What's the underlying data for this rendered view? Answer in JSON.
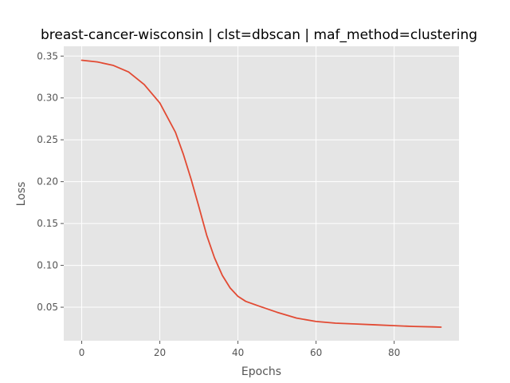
{
  "chart_data": {
    "type": "line",
    "title": "breast-cancer-wisconsin | clst=dbscan | maf_method=clustering",
    "xlabel": "Epochs",
    "ylabel": "Loss",
    "xlim": [
      -4.6,
      96.6
    ],
    "ylim": [
      0.01,
      0.3617
    ],
    "xticks": [
      0,
      20,
      40,
      60,
      80
    ],
    "yticks": [
      0.05,
      0.1,
      0.15,
      0.2,
      0.25,
      0.3,
      0.35
    ],
    "xtick_labels": [
      "0",
      "20",
      "40",
      "60",
      "80"
    ],
    "ytick_labels": [
      "0.05",
      "0.10",
      "0.15",
      "0.20",
      "0.25",
      "0.30",
      "0.35"
    ],
    "grid": true,
    "series": [
      {
        "color": "#E24A33",
        "x": [
          0,
          4,
          8,
          12,
          16,
          20,
          24,
          26,
          28,
          30,
          32,
          34,
          36,
          38,
          40,
          42,
          45,
          50,
          55,
          60,
          65,
          70,
          75,
          80,
          85,
          90,
          92
        ],
        "y": [
          0.345,
          0.343,
          0.339,
          0.331,
          0.316,
          0.294,
          0.259,
          0.233,
          0.203,
          0.17,
          0.136,
          0.109,
          0.088,
          0.073,
          0.063,
          0.057,
          0.052,
          0.044,
          0.037,
          0.033,
          0.031,
          0.03,
          0.029,
          0.028,
          0.027,
          0.0265,
          0.0262
        ]
      }
    ]
  }
}
